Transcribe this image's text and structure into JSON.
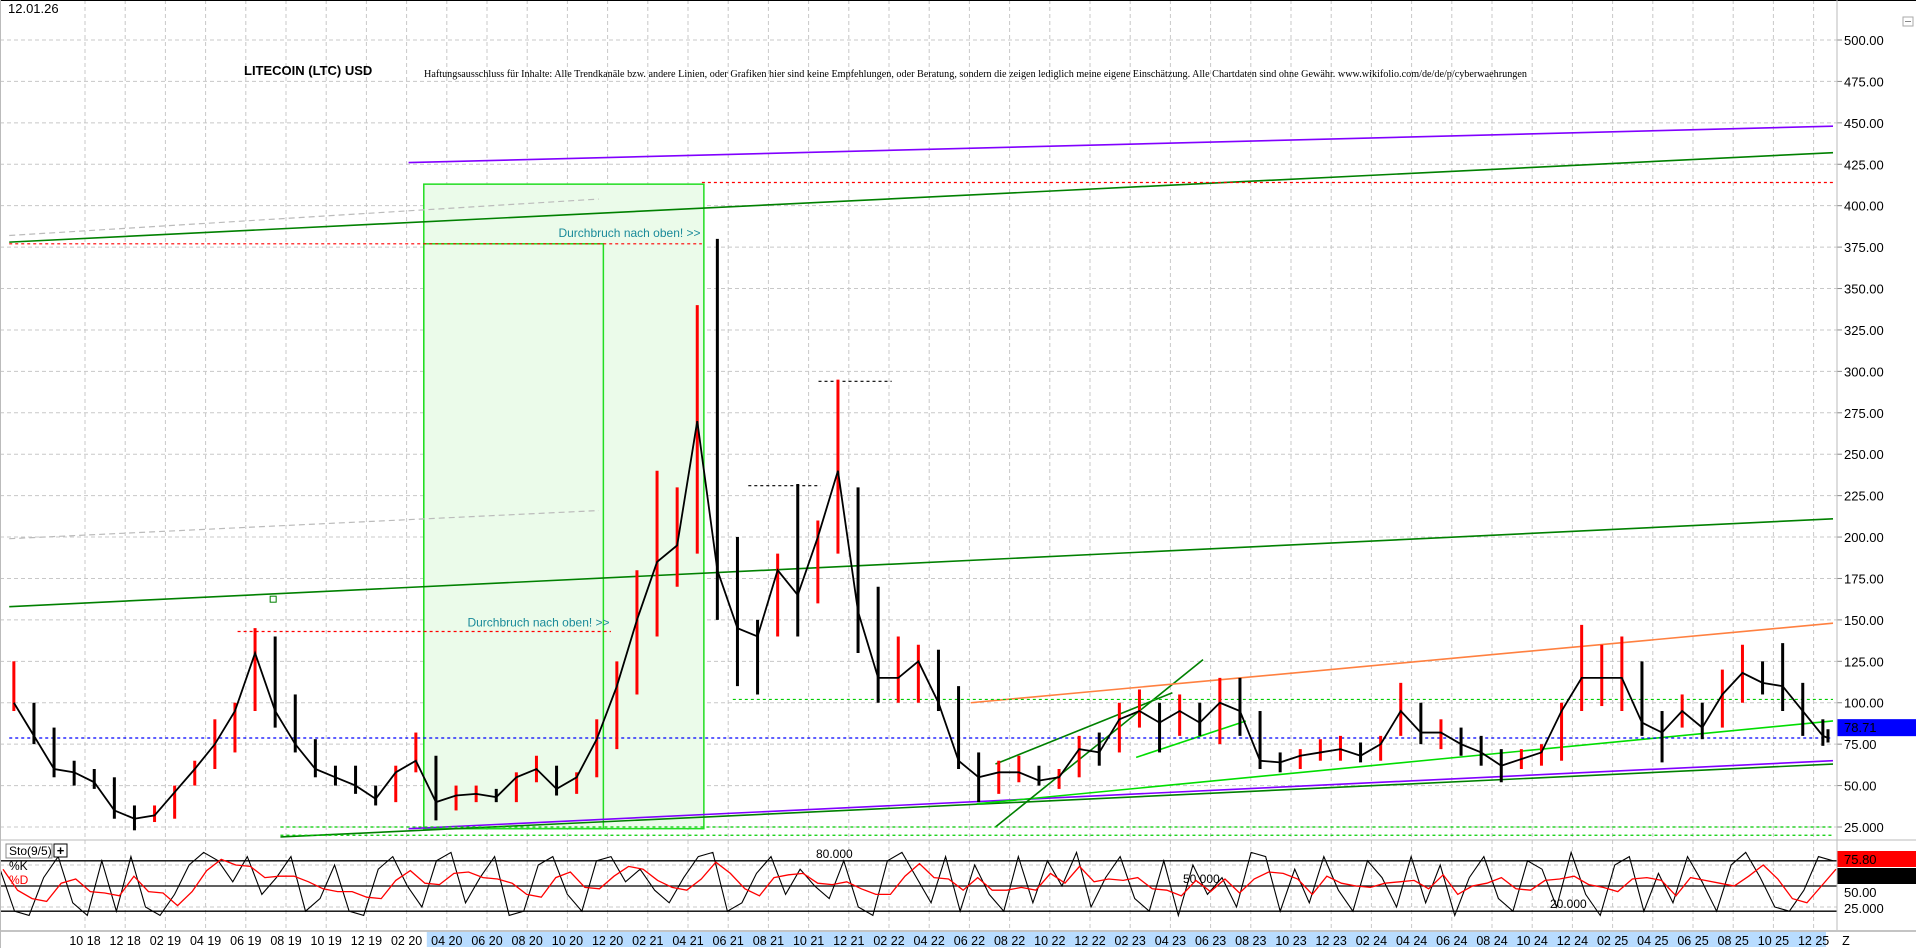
{
  "header": {
    "date": "12.01.26",
    "title": "LITECOIN (LTC) USD",
    "disclaimer": "Haftungsausschluss für Inhalte: Alle Trendkanäle bzw. andere Linien, oder Grafiken hier sind keine Empfehlungen, oder Beratung, sondern die zeigen lediglich meine eigene Einschätzung. Alle Chartdaten sind ohne Gewähr. www.wikifolio.com/de/de/p/cyberwaehrungen"
  },
  "chart_data": [
    {
      "type": "candlestick",
      "title": "LITECOIN (LTC) USD",
      "y_ticks": [
        "500.00",
        "475.00",
        "450.00",
        "425.00",
        "400.00",
        "375.00",
        "350.00",
        "325.00",
        "300.00",
        "275.00",
        "250.00",
        "225.00",
        "200.00",
        "175.00",
        "150.00",
        "125.00",
        "100.00",
        "75.00",
        "50.00",
        "25.000"
      ],
      "ylim": [
        25,
        500
      ],
      "grid": true,
      "x_ticks": [
        "10 18",
        "12 18",
        "02 19",
        "04 19",
        "06 19",
        "08 19",
        "10 19",
        "12 19",
        "02 20",
        "04 20",
        "06 20",
        "08 20",
        "10 20",
        "12 20",
        "02 21",
        "04 21",
        "06 21",
        "08 21",
        "10 21",
        "12 21",
        "02 22",
        "04 22",
        "06 22",
        "08 22",
        "10 22",
        "12 22",
        "02 23",
        "04 23",
        "06 23",
        "08 23",
        "10 23",
        "12 23",
        "02 24",
        "04 24",
        "06 24",
        "08 24",
        "10 24",
        "12 24",
        "02 25",
        "04 25",
        "06 25",
        "08 25",
        "10 25",
        "12 25"
      ],
      "x_end_label": "Z",
      "last_price": "78.71",
      "last_price_value": 78.71,
      "colors": {
        "up": "#ff0000",
        "down": "#000000",
        "last_price_box": "#0000ff",
        "highlight_band": "#b8dcff"
      },
      "monthly_low_high_close": [
        [
          "2018-06",
          95,
          125,
          100
        ],
        [
          "2018-07",
          75,
          100,
          80
        ],
        [
          "2018-08",
          55,
          85,
          60
        ],
        [
          "2018-09",
          50,
          65,
          58
        ],
        [
          "2018-10",
          48,
          60,
          52
        ],
        [
          "2018-11",
          30,
          55,
          35
        ],
        [
          "2018-12",
          23,
          38,
          30
        ],
        [
          "2019-01",
          28,
          38,
          32
        ],
        [
          "2019-02",
          30,
          50,
          46
        ],
        [
          "2019-03",
          50,
          65,
          60
        ],
        [
          "2019-04",
          60,
          90,
          75
        ],
        [
          "2019-05",
          70,
          100,
          95
        ],
        [
          "2019-06",
          95,
          145,
          130
        ],
        [
          "2019-07",
          85,
          140,
          95
        ],
        [
          "2019-08",
          70,
          105,
          75
        ],
        [
          "2019-09",
          55,
          78,
          60
        ],
        [
          "2019-10",
          50,
          62,
          55
        ],
        [
          "2019-11",
          45,
          62,
          50
        ],
        [
          "2019-12",
          38,
          50,
          42
        ],
        [
          "2020-01",
          40,
          62,
          58
        ],
        [
          "2020-02",
          58,
          82,
          65
        ],
        [
          "2020-03",
          29,
          68,
          40
        ],
        [
          "2020-04",
          35,
          50,
          44
        ],
        [
          "2020-05",
          40,
          50,
          45
        ],
        [
          "2020-06",
          40,
          48,
          43
        ],
        [
          "2020-07",
          40,
          58,
          55
        ],
        [
          "2020-08",
          52,
          68,
          60
        ],
        [
          "2020-09",
          44,
          62,
          48
        ],
        [
          "2020-10",
          45,
          58,
          55
        ],
        [
          "2020-11",
          55,
          90,
          78
        ],
        [
          "2020-12",
          72,
          125,
          110
        ],
        [
          "2021-01",
          105,
          180,
          150
        ],
        [
          "2021-02",
          140,
          240,
          185
        ],
        [
          "2021-03",
          170,
          230,
          195
        ],
        [
          "2021-04",
          190,
          340,
          270
        ],
        [
          "2021-05",
          150,
          380,
          180
        ],
        [
          "2021-06",
          110,
          200,
          145
        ],
        [
          "2021-07",
          105,
          150,
          140
        ],
        [
          "2021-08",
          140,
          190,
          180
        ],
        [
          "2021-09",
          140,
          232,
          165
        ],
        [
          "2021-10",
          160,
          210,
          200
        ],
        [
          "2021-11",
          190,
          295,
          240
        ],
        [
          "2021-12",
          130,
          230,
          155
        ],
        [
          "2022-01",
          100,
          170,
          115
        ],
        [
          "2022-02",
          100,
          140,
          115
        ],
        [
          "2022-03",
          100,
          135,
          125
        ],
        [
          "2022-04",
          95,
          132,
          100
        ],
        [
          "2022-05",
          60,
          110,
          65
        ],
        [
          "2022-06",
          40,
          70,
          55
        ],
        [
          "2022-07",
          45,
          65,
          58
        ],
        [
          "2022-08",
          52,
          68,
          58
        ],
        [
          "2022-09",
          50,
          62,
          53
        ],
        [
          "2022-10",
          48,
          60,
          55
        ],
        [
          "2022-11",
          55,
          80,
          72
        ],
        [
          "2022-12",
          62,
          82,
          70
        ],
        [
          "2023-01",
          70,
          100,
          90
        ],
        [
          "2023-02",
          85,
          108,
          95
        ],
        [
          "2023-03",
          70,
          100,
          88
        ],
        [
          "2023-04",
          80,
          105,
          95
        ],
        [
          "2023-05",
          80,
          100,
          88
        ],
        [
          "2023-06",
          75,
          115,
          100
        ],
        [
          "2023-07",
          80,
          115,
          95
        ],
        [
          "2023-08",
          60,
          95,
          65
        ],
        [
          "2023-09",
          58,
          70,
          64
        ],
        [
          "2023-10",
          60,
          72,
          68
        ],
        [
          "2023-11",
          65,
          78,
          70
        ],
        [
          "2023-12",
          65,
          80,
          72
        ],
        [
          "2024-01",
          64,
          76,
          68
        ],
        [
          "2024-02",
          65,
          80,
          75
        ],
        [
          "2024-03",
          80,
          112,
          95
        ],
        [
          "2024-04",
          75,
          100,
          82
        ],
        [
          "2024-05",
          72,
          90,
          82
        ],
        [
          "2024-06",
          68,
          85,
          75
        ],
        [
          "2024-07",
          62,
          80,
          70
        ],
        [
          "2024-08",
          52,
          72,
          62
        ],
        [
          "2024-09",
          60,
          72,
          66
        ],
        [
          "2024-10",
          62,
          75,
          70
        ],
        [
          "2024-11",
          65,
          100,
          95
        ],
        [
          "2024-12",
          95,
          147,
          115
        ],
        [
          "2025-01",
          98,
          135,
          115
        ],
        [
          "2025-02",
          95,
          140,
          115
        ],
        [
          "2025-03",
          80,
          125,
          88
        ],
        [
          "2025-04",
          64,
          95,
          82
        ],
        [
          "2025-05",
          85,
          105,
          95
        ],
        [
          "2025-06",
          78,
          100,
          85
        ],
        [
          "2025-07",
          85,
          120,
          105
        ],
        [
          "2025-08",
          100,
          135,
          118
        ],
        [
          "2025-09",
          105,
          125,
          112
        ],
        [
          "2025-10",
          95,
          136,
          110
        ],
        [
          "2025-11",
          80,
          112,
          95
        ],
        [
          "2025-12",
          74,
          90,
          80
        ],
        [
          "2026-01",
          76,
          84,
          78.71
        ]
      ],
      "trend_lines": [
        {
          "from": [
            "2020-02-04",
            426
          ],
          "to": [
            "2026-01-01",
            448
          ],
          "color": "#8000ff",
          "style": "solid"
        },
        {
          "from": [
            "2018-06-08",
            378
          ],
          "to": [
            "2026-01-01",
            432
          ],
          "color": "#008000",
          "style": "solid"
        },
        {
          "from": [
            "2018-06-08",
            158
          ],
          "to": [
            "2026-01-01",
            211
          ],
          "color": "#008000",
          "style": "solid"
        },
        {
          "from": [
            "2020-02-04",
            24
          ],
          "to": [
            "2026-01-01",
            65
          ],
          "color": "#8000ff",
          "style": "solid"
        },
        {
          "from": [
            "2019-07-23",
            19
          ],
          "to": [
            "2026-01-01",
            63
          ],
          "color": "#008000",
          "style": "solid"
        },
        {
          "from": [
            "2022-06-12",
            39
          ],
          "to": [
            "2026-01-01",
            89
          ],
          "color": "#00dd00",
          "style": "solid"
        },
        {
          "from": [
            "2022-07-10",
            25
          ],
          "to": [
            "2023-05-20",
            126
          ],
          "color": "#008000",
          "style": "solid"
        },
        {
          "from": [
            "2022-07-10",
            63
          ],
          "to": [
            "2023-04-04",
            106
          ],
          "color": "#008000",
          "style": "solid"
        },
        {
          "from": [
            "2023-02-10",
            67
          ],
          "to": [
            "2023-07-24",
            89
          ],
          "color": "#00dd00",
          "style": "solid"
        },
        {
          "from": [
            "2022-06-03",
            100
          ],
          "to": [
            "2026-01-01",
            148
          ],
          "color": "#ff8040",
          "style": "solid"
        },
        {
          "from": [
            "2018-06-08",
            382
          ],
          "to": [
            "2020-11-18",
            404
          ],
          "color": "#bbbbbb",
          "style": "dashed"
        },
        {
          "from": [
            "2018-06-08",
            199
          ],
          "to": [
            "2020-11-18",
            216
          ],
          "color": "#bbbbbb",
          "style": "dashed"
        },
        {
          "from": [
            "2018-06-08",
            377
          ],
          "to": [
            "2021-04-22",
            377
          ],
          "color": "#ff0000",
          "style": "dotted"
        },
        {
          "from": [
            "2019-05-19",
            143
          ],
          "to": [
            "2020-12-06",
            143
          ],
          "color": "#ff0000",
          "style": "dotted"
        },
        {
          "from": [
            "2021-04-22",
            414
          ],
          "to": [
            "2026-01-01",
            414
          ],
          "color": "#ff0000",
          "style": "dotted"
        },
        {
          "from": [
            "2021-10-16",
            294
          ],
          "to": [
            "2022-02-05",
            294
          ],
          "color": "#000000",
          "style": "dotted"
        },
        {
          "from": [
            "2021-07-01",
            231
          ],
          "to": [
            "2021-10-19",
            231
          ],
          "color": "#000000",
          "style": "dotted"
        },
        {
          "from": [
            "2021-06-08",
            102
          ],
          "to": [
            "2026-01-01",
            102
          ],
          "color": "#00cc00",
          "style": "dotted"
        },
        {
          "from": [
            "2019-07-23",
            25
          ],
          "to": [
            "2026-01-01",
            25
          ],
          "color": "#00cc00",
          "style": "dotted"
        },
        {
          "from": [
            "2019-07-23",
            20
          ],
          "to": [
            "2026-01-01",
            20
          ],
          "color": "#00cc00",
          "style": "dotted"
        },
        {
          "from": [
            "2018-06-08",
            78.71
          ],
          "to": [
            "2026-01-01",
            78.71
          ],
          "color": "#0000ff",
          "style": "dotted"
        }
      ],
      "rectangles": [
        {
          "from": [
            "2020-02-27",
            413
          ],
          "to": [
            "2021-04-25",
            24
          ],
          "color": "#22dd22",
          "fill": "#ebfbea"
        },
        {
          "from": [
            "2020-02-27",
            377
          ],
          "to": [
            "2020-11-25",
            24
          ],
          "color": "#22dd22",
          "fill": "none"
        }
      ],
      "annotations": [
        {
          "text": "Durchbruch nach oben! >>",
          "at": [
            "2021-04-20",
            381
          ]
        },
        {
          "text": "Durchbruch nach oben! >>",
          "at": [
            "2020-12-04",
            146
          ]
        }
      ],
      "marker": {
        "at": [
          "2019-07-12",
          162.5
        ]
      }
    },
    {
      "type": "line",
      "title": "Sto(9/5)",
      "series": [
        {
          "name": "%K",
          "color": "#000000"
        },
        {
          "name": "%D",
          "color": "#ff0000"
        }
      ],
      "levels": [
        {
          "value": 80,
          "label": "80.000"
        },
        {
          "value": 50,
          "label": "50.000"
        },
        {
          "value": 20,
          "label": "20.000"
        }
      ],
      "y_ticks": [
        "50.00",
        "25.000"
      ],
      "ylim": [
        0,
        100
      ],
      "k_last": "75.80",
      "d_last": "60.27",
      "k_values": [
        70,
        20,
        15,
        60,
        85,
        30,
        15,
        80,
        20,
        85,
        25,
        15,
        40,
        75,
        90,
        80,
        55,
        85,
        40,
        60,
        85,
        20,
        35,
        75,
        20,
        15,
        70,
        85,
        50,
        25,
        80,
        90,
        30,
        60,
        85,
        15,
        20,
        75,
        85,
        40,
        20,
        80,
        85,
        55,
        70,
        45,
        30,
        60,
        85,
        90,
        20,
        30,
        65,
        85,
        40,
        70,
        50,
        35,
        80,
        25,
        15,
        80,
        90,
        60,
        30,
        85,
        20,
        75,
        40,
        20,
        85,
        30,
        80,
        50,
        90,
        25,
        60,
        85,
        35,
        20,
        80,
        15,
        75,
        40,
        60,
        25,
        90,
        85,
        20,
        70,
        30,
        85,
        45,
        20,
        80,
        60,
        25,
        85,
        30,
        75,
        15,
        60,
        85,
        35,
        20,
        80,
        70,
        25,
        90,
        40,
        15,
        75,
        85,
        20,
        65,
        30,
        85,
        55,
        20,
        75,
        90,
        60,
        25,
        20,
        45,
        85,
        80
      ]
    }
  ]
}
